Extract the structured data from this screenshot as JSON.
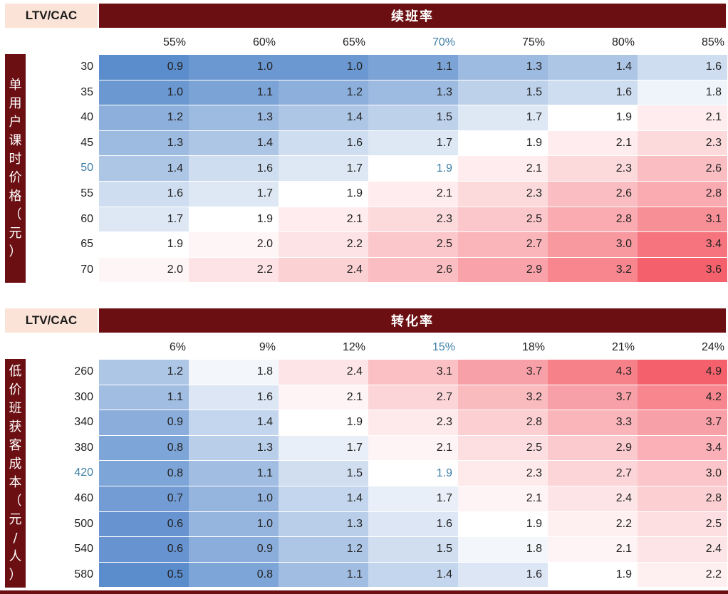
{
  "colors": {
    "header_bg": "#6b0f12",
    "corner_bg": "#fbe3d7",
    "low": "#5b8ccc",
    "mid": "#ffffff",
    "high": "#f4616c",
    "highlight_text": "#3d7ea6"
  },
  "chart_data": [
    {
      "type": "heatmap",
      "corner_label": "LTV/CAC",
      "title": "续班率",
      "ylabel": "单用户课时价格（元）",
      "x": [
        "55%",
        "60%",
        "65%",
        "70%",
        "75%",
        "80%",
        "85%"
      ],
      "y": [
        "30",
        "35",
        "40",
        "45",
        "50",
        "55",
        "60",
        "65",
        "70"
      ],
      "highlight_x": 3,
      "highlight_y": 4,
      "vmin": 0.9,
      "vmid": 1.9,
      "vmax": 3.6,
      "values": [
        [
          0.9,
          1.0,
          1.0,
          1.1,
          1.3,
          1.4,
          1.6
        ],
        [
          1.0,
          1.1,
          1.2,
          1.3,
          1.5,
          1.6,
          1.8
        ],
        [
          1.2,
          1.3,
          1.4,
          1.5,
          1.7,
          1.9,
          2.1
        ],
        [
          1.3,
          1.4,
          1.6,
          1.7,
          1.9,
          2.1,
          2.3
        ],
        [
          1.4,
          1.6,
          1.7,
          1.9,
          2.1,
          2.3,
          2.6
        ],
        [
          1.6,
          1.7,
          1.9,
          2.1,
          2.3,
          2.6,
          2.8
        ],
        [
          1.7,
          1.9,
          2.1,
          2.3,
          2.5,
          2.8,
          3.1
        ],
        [
          1.9,
          2.0,
          2.2,
          2.5,
          2.7,
          3.0,
          3.4
        ],
        [
          2.0,
          2.2,
          2.4,
          2.6,
          2.9,
          3.2,
          3.6
        ]
      ]
    },
    {
      "type": "heatmap",
      "corner_label": "LTV/CAC",
      "title": "转化率",
      "ylabel": "低价班获客成本（元/人）",
      "x": [
        "6%",
        "9%",
        "12%",
        "15%",
        "18%",
        "21%",
        "24%"
      ],
      "y": [
        "260",
        "300",
        "340",
        "380",
        "420",
        "460",
        "500",
        "540",
        "580"
      ],
      "highlight_x": 3,
      "highlight_y": 4,
      "vmin": 0.5,
      "vmid": 1.9,
      "vmax": 4.9,
      "values": [
        [
          1.2,
          1.8,
          2.4,
          3.1,
          3.7,
          4.3,
          4.9
        ],
        [
          1.1,
          1.6,
          2.1,
          2.7,
          3.2,
          3.7,
          4.2
        ],
        [
          0.9,
          1.4,
          1.9,
          2.3,
          2.8,
          3.3,
          3.7
        ],
        [
          0.8,
          1.3,
          1.7,
          2.1,
          2.5,
          2.9,
          3.4
        ],
        [
          0.8,
          1.1,
          1.5,
          1.9,
          2.3,
          2.7,
          3.0
        ],
        [
          0.7,
          1.0,
          1.4,
          1.7,
          2.1,
          2.4,
          2.8
        ],
        [
          0.6,
          1.0,
          1.3,
          1.6,
          1.9,
          2.2,
          2.5
        ],
        [
          0.6,
          0.9,
          1.2,
          1.5,
          1.8,
          2.1,
          2.4
        ],
        [
          0.5,
          0.8,
          1.1,
          1.4,
          1.6,
          1.9,
          2.2
        ]
      ]
    }
  ]
}
